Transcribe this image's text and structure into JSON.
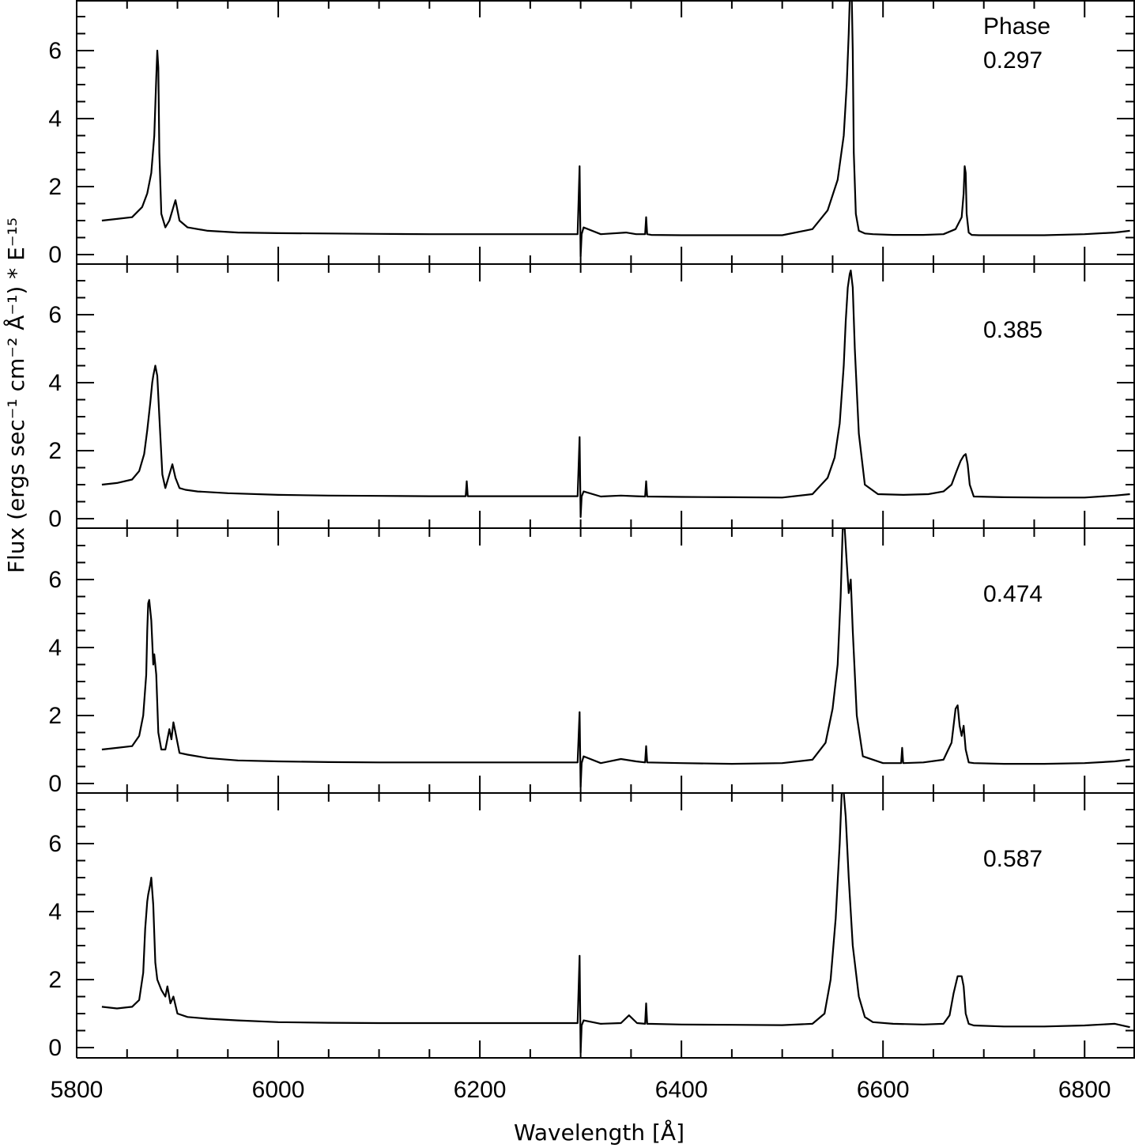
{
  "chart_data": {
    "type": "line",
    "xlabel": "Wavelength [Å]",
    "ylabel": "Flux (ergs sec⁻¹ cm⁻² Å⁻¹) * E⁻¹⁵",
    "xlim": [
      5800,
      6850
    ],
    "ylim": [
      -0.3,
      7.5
    ],
    "xticks": [
      5800,
      6000,
      6200,
      6400,
      6600,
      6800
    ],
    "xtick_labels": [
      "5800",
      "6000",
      "6200",
      "6400",
      "6600",
      "6800"
    ],
    "yticks": [
      0,
      2,
      4,
      6
    ],
    "ytick_labels": [
      "0",
      "2",
      "4",
      "6"
    ],
    "layout": "4 vertically stacked panels sharing x axis",
    "panels": [
      {
        "label_lines": [
          "Phase",
          "0.297"
        ],
        "x": [
          5825,
          5840,
          5855,
          5865,
          5870,
          5874,
          5877,
          5879,
          5880,
          5881,
          5882,
          5884,
          5888,
          5892,
          5896,
          5898,
          5902,
          5910,
          5930,
          5960,
          6000,
          6050,
          6100,
          6150,
          6200,
          6250,
          6297,
          6299,
          6300,
          6301,
          6303,
          6320,
          6345,
          6355,
          6364,
          6365,
          6366,
          6370,
          6400,
          6450,
          6500,
          6530,
          6545,
          6555,
          6561,
          6564,
          6566,
          6567,
          6568,
          6569,
          6570,
          6571,
          6573,
          6576,
          6582,
          6590,
          6610,
          6640,
          6660,
          6672,
          6678,
          6680,
          6681,
          6682,
          6683,
          6685,
          6688,
          6695,
          6720,
          6760,
          6800,
          6830,
          6845
        ],
        "y": [
          1.0,
          1.05,
          1.1,
          1.4,
          1.8,
          2.4,
          3.5,
          5.2,
          6.0,
          5.5,
          3.0,
          1.2,
          0.8,
          1.0,
          1.4,
          1.6,
          1.0,
          0.8,
          0.7,
          0.65,
          0.63,
          0.62,
          0.61,
          0.6,
          0.6,
          0.6,
          0.6,
          2.6,
          -0.05,
          0.6,
          0.8,
          0.6,
          0.65,
          0.6,
          0.6,
          1.1,
          0.6,
          0.58,
          0.57,
          0.57,
          0.57,
          0.75,
          1.3,
          2.2,
          3.5,
          5.0,
          6.5,
          7.5,
          7.5,
          7.5,
          6.0,
          3.0,
          1.2,
          0.7,
          0.62,
          0.6,
          0.58,
          0.58,
          0.6,
          0.75,
          1.1,
          1.8,
          2.6,
          2.4,
          1.2,
          0.65,
          0.58,
          0.57,
          0.57,
          0.57,
          0.6,
          0.65,
          0.7
        ]
      },
      {
        "label_lines": [
          "0.385"
        ],
        "x": [
          5825,
          5840,
          5855,
          5862,
          5867,
          5870,
          5873,
          5875,
          5876,
          5878,
          5880,
          5882,
          5885,
          5888,
          5892,
          5895,
          5898,
          5902,
          5908,
          5920,
          5950,
          6000,
          6050,
          6100,
          6150,
          6186,
          6187,
          6188,
          6200,
          6250,
          6297,
          6299,
          6300,
          6301,
          6303,
          6320,
          6340,
          6355,
          6364,
          6365,
          6366,
          6400,
          6450,
          6500,
          6530,
          6545,
          6552,
          6557,
          6561,
          6563,
          6565,
          6567,
          6568,
          6570,
          6572,
          6576,
          6582,
          6595,
          6620,
          6645,
          6660,
          6668,
          6673,
          6677,
          6680,
          6682,
          6684,
          6686,
          6690,
          6720,
          6760,
          6800,
          6830,
          6845
        ],
        "y": [
          1.0,
          1.05,
          1.15,
          1.4,
          1.9,
          2.6,
          3.4,
          4.0,
          4.2,
          4.5,
          4.2,
          3.0,
          1.3,
          0.9,
          1.3,
          1.6,
          1.2,
          0.9,
          0.85,
          0.8,
          0.75,
          0.7,
          0.68,
          0.67,
          0.66,
          0.66,
          1.1,
          0.66,
          0.66,
          0.66,
          0.66,
          2.4,
          0.05,
          0.65,
          0.8,
          0.65,
          0.68,
          0.66,
          0.65,
          1.1,
          0.65,
          0.64,
          0.63,
          0.62,
          0.72,
          1.2,
          1.8,
          2.8,
          4.5,
          5.8,
          6.8,
          7.2,
          7.3,
          6.8,
          5.0,
          2.5,
          1.0,
          0.72,
          0.7,
          0.72,
          0.8,
          1.0,
          1.4,
          1.7,
          1.85,
          1.9,
          1.6,
          1.0,
          0.65,
          0.63,
          0.62,
          0.62,
          0.68,
          0.72
        ]
      },
      {
        "label_lines": [
          "0.474"
        ],
        "x": [
          5825,
          5840,
          5855,
          5862,
          5866,
          5869,
          5870,
          5871,
          5872,
          5874,
          5876,
          5877,
          5879,
          5881,
          5884,
          5888,
          5892,
          5894,
          5896,
          5898,
          5902,
          5910,
          5930,
          5960,
          6000,
          6050,
          6100,
          6150,
          6200,
          6250,
          6297,
          6299,
          6300,
          6301,
          6303,
          6320,
          6340,
          6355,
          6364,
          6365,
          6366,
          6400,
          6450,
          6500,
          6530,
          6543,
          6550,
          6555,
          6558,
          6560,
          6562,
          6564,
          6566,
          6568,
          6570,
          6574,
          6580,
          6600,
          6618,
          6619,
          6620,
          6640,
          6660,
          6668,
          6672,
          6674,
          6676,
          6678,
          6680,
          6682,
          6685,
          6690,
          6720,
          6760,
          6800,
          6830,
          6845
        ],
        "y": [
          1.0,
          1.05,
          1.1,
          1.4,
          2.0,
          3.2,
          4.5,
          5.3,
          5.4,
          4.8,
          3.5,
          3.8,
          3.2,
          1.5,
          1.0,
          1.0,
          1.6,
          1.3,
          1.8,
          1.5,
          0.9,
          0.85,
          0.75,
          0.68,
          0.65,
          0.63,
          0.62,
          0.62,
          0.62,
          0.62,
          0.62,
          2.1,
          -0.1,
          0.6,
          0.8,
          0.6,
          0.72,
          0.65,
          0.62,
          1.1,
          0.62,
          0.6,
          0.58,
          0.6,
          0.7,
          1.2,
          2.2,
          3.5,
          5.5,
          7.5,
          7.5,
          6.5,
          5.6,
          6.0,
          4.5,
          2.0,
          0.8,
          0.6,
          0.6,
          1.05,
          0.6,
          0.62,
          0.7,
          1.2,
          2.2,
          2.3,
          1.7,
          1.4,
          1.7,
          1.0,
          0.62,
          0.6,
          0.58,
          0.58,
          0.6,
          0.65,
          0.7
        ]
      },
      {
        "label_lines": [
          "0.587"
        ],
        "x": [
          5825,
          5840,
          5855,
          5862,
          5866,
          5868,
          5870,
          5871,
          5873,
          5874,
          5876,
          5878,
          5880,
          5884,
          5888,
          5890,
          5893,
          5896,
          5900,
          5910,
          5930,
          5960,
          6000,
          6050,
          6100,
          6150,
          6200,
          6250,
          6297,
          6299,
          6300,
          6301,
          6303,
          6320,
          6340,
          6348,
          6356,
          6364,
          6365,
          6366,
          6400,
          6450,
          6500,
          6530,
          6542,
          6548,
          6553,
          6557,
          6559,
          6561,
          6563,
          6566,
          6570,
          6576,
          6582,
          6590,
          6610,
          6640,
          6660,
          6666,
          6670,
          6674,
          6678,
          6680,
          6682,
          6685,
          6690,
          6720,
          6760,
          6800,
          6830,
          6845
        ],
        "y": [
          1.2,
          1.15,
          1.2,
          1.4,
          2.2,
          3.5,
          4.3,
          4.5,
          4.8,
          5.0,
          4.2,
          2.5,
          2.0,
          1.7,
          1.5,
          1.8,
          1.3,
          1.5,
          1.0,
          0.9,
          0.85,
          0.8,
          0.75,
          0.73,
          0.72,
          0.72,
          0.72,
          0.72,
          0.72,
          2.7,
          -0.15,
          0.65,
          0.8,
          0.7,
          0.72,
          0.95,
          0.72,
          0.7,
          1.3,
          0.7,
          0.68,
          0.67,
          0.66,
          0.7,
          1.0,
          2.0,
          3.8,
          6.0,
          7.5,
          7.5,
          6.8,
          5.0,
          3.0,
          1.5,
          0.9,
          0.75,
          0.7,
          0.68,
          0.7,
          0.95,
          1.6,
          2.1,
          2.1,
          1.8,
          1.0,
          0.7,
          0.65,
          0.62,
          0.62,
          0.65,
          0.7,
          0.6
        ]
      }
    ]
  }
}
